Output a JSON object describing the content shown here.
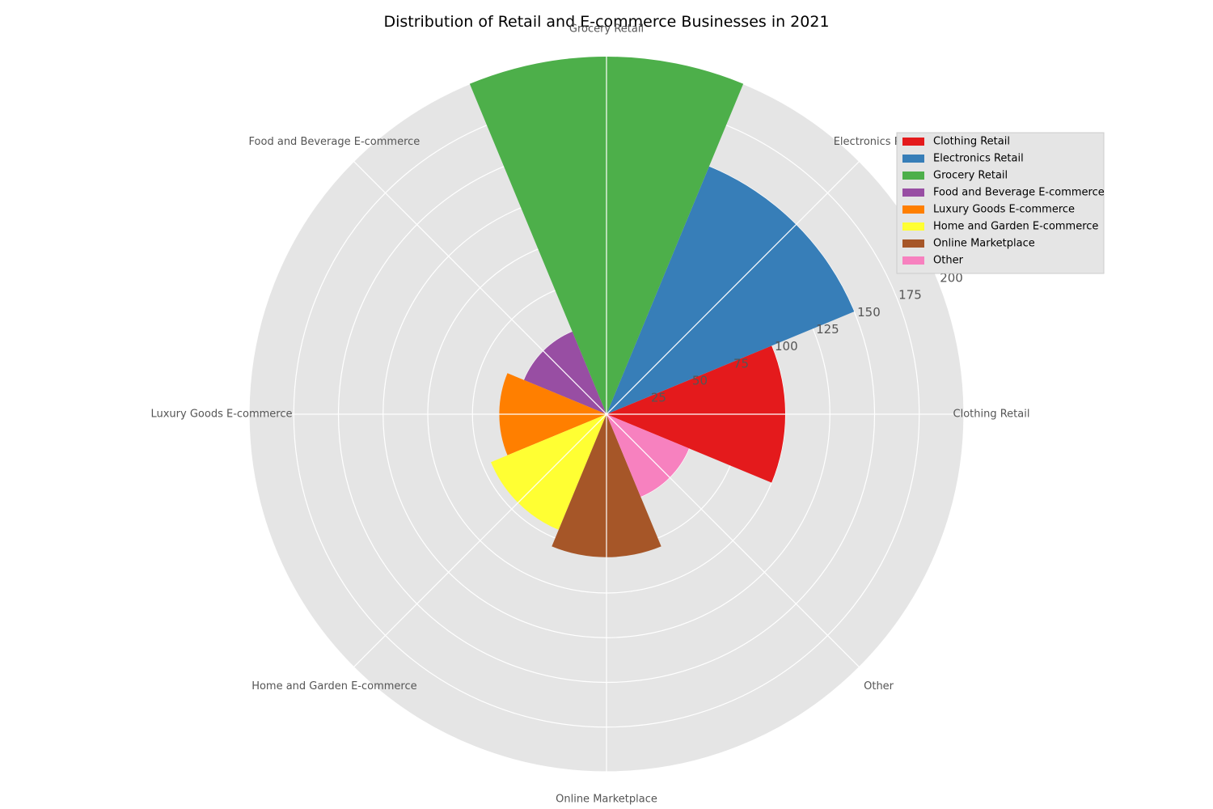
{
  "chart_data": {
    "type": "polar-bar",
    "title": "Distribution of Retail and E-commerce Businesses in 2021",
    "categories": [
      "Clothing Retail",
      "Electronics Retail",
      "Grocery Retail",
      "Food and Beverage E-commerce",
      "Luxury Goods E-commerce",
      "Home and Garden E-commerce",
      "Online Marketplace",
      "Other"
    ],
    "values": [
      100,
      150,
      200,
      50,
      60,
      70,
      80,
      50
    ],
    "colors": [
      "#e41a1c",
      "#377eb8",
      "#4daf4a",
      "#984ea3",
      "#ff7f00",
      "#ffff33",
      "#a65628",
      "#f781bf"
    ],
    "rlim": [
      0,
      200
    ],
    "rticks": [
      "25",
      "50",
      "75",
      "100",
      "125",
      "150",
      "175",
      "200"
    ],
    "grid": true,
    "legend_position": "top-right",
    "background_color": "#e5e5e5"
  }
}
